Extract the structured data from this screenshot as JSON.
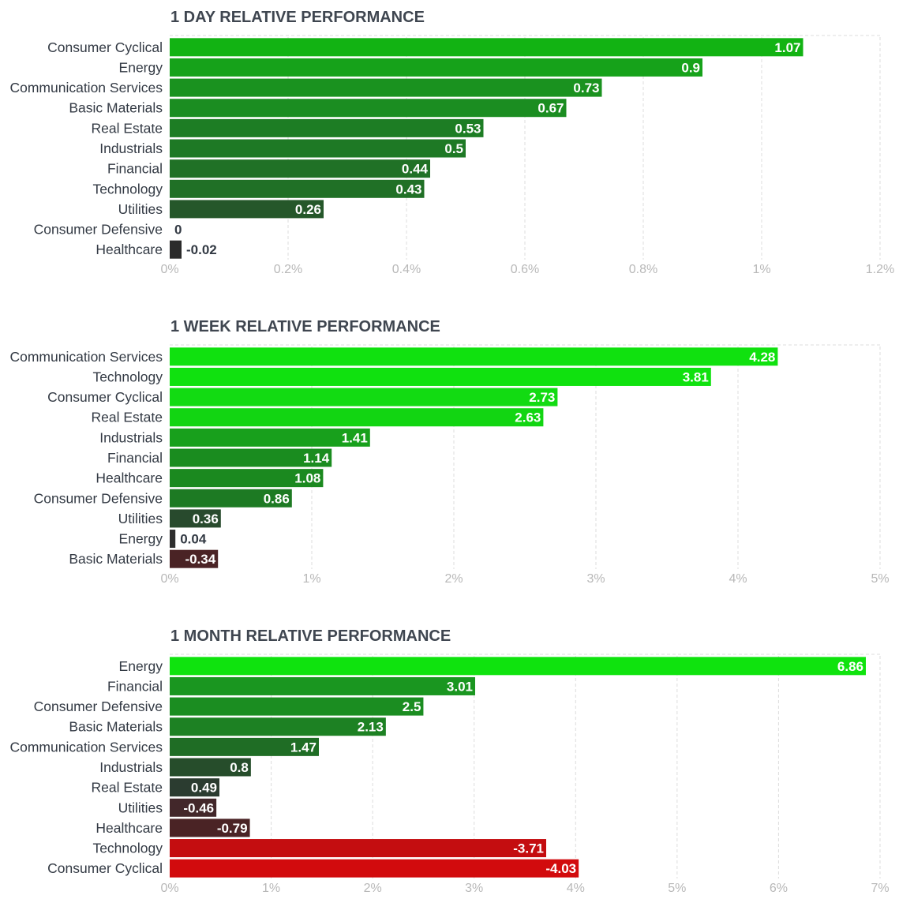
{
  "chart_data": [
    {
      "type": "bar",
      "orientation": "horizontal",
      "title": "1 DAY RELATIVE PERFORMANCE",
      "categories": [
        "Consumer Cyclical",
        "Energy",
        "Communication Services",
        "Basic Materials",
        "Real Estate",
        "Industrials",
        "Financial",
        "Technology",
        "Utilities",
        "Consumer Defensive",
        "Healthcare"
      ],
      "values": [
        1.07,
        0.9,
        0.73,
        0.67,
        0.53,
        0.5,
        0.44,
        0.43,
        0.26,
        0,
        -0.02
      ],
      "value_labels": [
        "1.07",
        "0.9",
        "0.73",
        "0.67",
        "0.53",
        "0.5",
        "0.44",
        "0.43",
        "0.26",
        "0",
        "-0.02"
      ],
      "xlim": [
        0,
        1.2
      ],
      "ticks": [
        0,
        0.2,
        0.4,
        0.6,
        0.8,
        1,
        1.2
      ],
      "tick_labels": [
        "0%",
        "0.2%",
        "0.4%",
        "0.6%",
        "0.8%",
        "1%",
        "1.2%"
      ],
      "bar_colors": [
        "#12b313",
        "#16a21a",
        "#1a921f",
        "#1b8d21",
        "#1d7d24",
        "#1e7925",
        "#207126",
        "#207026",
        "#25572a",
        "#2e3b32",
        "#2b2b2b"
      ],
      "grid": true,
      "legend": "none"
    },
    {
      "type": "bar",
      "orientation": "horizontal",
      "title": "1 WEEK RELATIVE PERFORMANCE",
      "categories": [
        "Communication Services",
        "Technology",
        "Consumer Cyclical",
        "Real Estate",
        "Industrials",
        "Financial",
        "Healthcare",
        "Consumer Defensive",
        "Utilities",
        "Energy",
        "Basic Materials"
      ],
      "values": [
        4.28,
        3.81,
        2.73,
        2.63,
        1.41,
        1.14,
        1.08,
        0.86,
        0.36,
        0.04,
        -0.34
      ],
      "value_labels": [
        "4.28",
        "3.81",
        "2.73",
        "2.63",
        "1.41",
        "1.14",
        "1.08",
        "0.86",
        "0.36",
        "0.04",
        "-0.34"
      ],
      "xlim": [
        0,
        5
      ],
      "ticks": [
        0,
        1,
        2,
        3,
        4,
        5
      ],
      "tick_labels": [
        "0%",
        "1%",
        "2%",
        "3%",
        "4%",
        "5%"
      ],
      "bar_colors": [
        "#10e10f",
        "#10e10f",
        "#12db12",
        "#12d512",
        "#18a01c",
        "#1a8c1f",
        "#1b891f",
        "#1d7a23",
        "#284a2d",
        "#2d2d2d",
        "#4a2325"
      ],
      "grid": true,
      "legend": "none"
    },
    {
      "type": "bar",
      "orientation": "horizontal",
      "title": "1 MONTH RELATIVE PERFORMANCE",
      "categories": [
        "Energy",
        "Financial",
        "Consumer Defensive",
        "Basic Materials",
        "Communication Services",
        "Industrials",
        "Real Estate",
        "Utilities",
        "Healthcare",
        "Technology",
        "Consumer Cyclical"
      ],
      "values": [
        6.86,
        3.01,
        2.5,
        2.13,
        1.47,
        0.8,
        0.49,
        -0.46,
        -0.79,
        -3.71,
        -4.03
      ],
      "value_labels": [
        "6.86",
        "3.01",
        "2.5",
        "2.13",
        "1.47",
        "0.8",
        "0.49",
        "-0.46",
        "-0.79",
        "-3.71",
        "-4.03"
      ],
      "xlim": [
        0,
        7
      ],
      "ticks": [
        0,
        1,
        2,
        3,
        4,
        5,
        6,
        7
      ],
      "tick_labels": [
        "0%",
        "1%",
        "2%",
        "3%",
        "4%",
        "5%",
        "6%",
        "7%"
      ],
      "bar_colors": [
        "#0fe30e",
        "#1a9620",
        "#1b8d21",
        "#1d8123",
        "#1f6d25",
        "#264d2b",
        "#2b3c30",
        "#42272a",
        "#4a2325",
        "#c40d10",
        "#d20b0d"
      ],
      "grid": true,
      "legend": "none"
    }
  ]
}
